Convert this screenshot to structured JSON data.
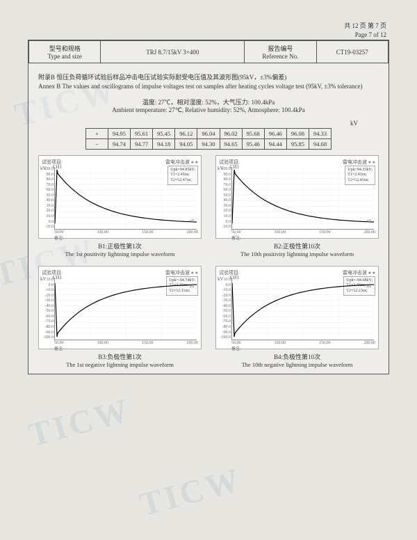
{
  "page": {
    "cn_num": "共 12 页  第 7 页",
    "en_num": "Page 7 of 12"
  },
  "header": {
    "type_cn": "型号和规格",
    "type_en": "Type and size",
    "type_val": "TRJ 8.7/15kV 3×400",
    "ref_cn": "报告编号",
    "ref_en": "Reference No.",
    "ref_val": "CT19-03257"
  },
  "annex": {
    "cn": "附录B  恒压负荷循环试验后样品冲击电压试验实际耐受电压值及其波形图(95kV，±3%偏差)",
    "en": "Annex B  The values and oscillograms of impulse voltages test on samples after heating cycles voltage test (95kV, ±3% tolerance)"
  },
  "ambient": {
    "cn": "温度: 27℃，相对湿度: 52%，大气压力: 100.4kPa",
    "en": "Ambient temperature: 27℃, Relative humidity: 52%, Atmosphere: 100.4kPa"
  },
  "unit": "kV",
  "table": {
    "row_plus_sign": "+",
    "row_minus_sign": "−",
    "plus": [
      "94.95",
      "95.61",
      "95.45",
      "96.12",
      "96.04",
      "96.02",
      "95.68",
      "96.46",
      "96.08",
      "94.33"
    ],
    "minus": [
      "94.74",
      "94.77",
      "94.18",
      "94.05",
      "94.30",
      "94.65",
      "95.46",
      "94.44",
      "95.85",
      "94.68"
    ]
  },
  "chart_common": {
    "test_label": "试验项目:",
    "type_label": "雷电冲击波",
    "dots": "● ●",
    "kv": "kV",
    "ch": "CH1",
    "us": "uS",
    "remark": "备注:",
    "xticks": [
      "50.00",
      "100.00",
      "150.00",
      "200.00"
    ]
  },
  "charts": [
    {
      "id": "B1",
      "yticks": [
        "100.0",
        "90.0",
        "80.0",
        "70.0",
        "60.0",
        "50.0",
        "40.0",
        "30.0",
        "20.0",
        "10.0",
        "0.0",
        "-10.0"
      ],
      "info": [
        "Upk=94.95kV;",
        "T1=2.41us;",
        "T2=52.47us;"
      ],
      "curve_type": "pos",
      "cap_cn": "B1:正极性第1次",
      "cap_en": "The 1st positivity lightning impulse waveform"
    },
    {
      "id": "B2",
      "yticks": [
        "100.0",
        "90.0",
        "80.0",
        "70.0",
        "60.0",
        "50.0",
        "40.0",
        "30.0",
        "20.0",
        "10.0",
        "0.0",
        "-10.0"
      ],
      "info": [
        "Upk=94.33kV;",
        "T1=2.41us;",
        "T2=52.45us;"
      ],
      "curve_type": "pos",
      "cap_cn": "B2:正极性第10次",
      "cap_en": "The 10th positivity lightning impulse waveform"
    },
    {
      "id": "B3",
      "yticks": [
        "10.0",
        "0.0",
        "-10.0",
        "-20.0",
        "-30.0",
        "-40.0",
        "-50.0",
        "-60.0",
        "-70.0",
        "-80.0",
        "-90.0",
        "-100.0"
      ],
      "info": [
        "Upk=-94.74kV;",
        "T1=2.35us;",
        "T2=52.11us;"
      ],
      "curve_type": "neg",
      "cap_cn": "B3:负极性第1次",
      "cap_en": "The 1st negative lightning impulse waveform"
    },
    {
      "id": "B4",
      "yticks": [
        "10.0",
        "0.0",
        "-10.0",
        "-20.0",
        "-30.0",
        "-40.0",
        "-50.0",
        "-60.0",
        "-70.0",
        "-80.0",
        "-90.0",
        "-100.0"
      ],
      "info": [
        "Upk=-94.68kV;",
        "T1=2.46us;",
        "T2=52.23us;"
      ],
      "curve_type": "neg",
      "cap_cn": "B4:负极性第10次",
      "cap_en": "The 10th negative lightning impulse waveform"
    }
  ],
  "watermark": "TICW"
}
